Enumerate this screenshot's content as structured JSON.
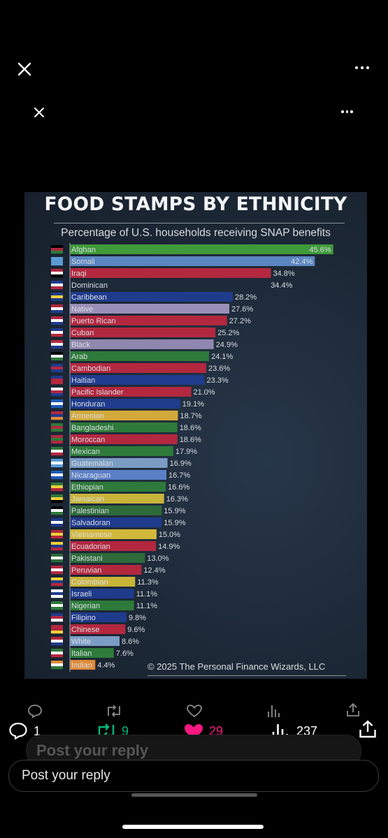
{
  "chart_data": {
    "type": "bar",
    "orientation": "horizontal",
    "title": "FOOD STAMPS BY ETHNICITY",
    "subtitle": "Percentage of U.S. households receiving SNAP benefits",
    "footer": "© 2025 The Personal Finance Wizards, LLC",
    "categories": [
      "Afghan",
      "Somali",
      "Iraqi",
      "Dominican",
      "Caribbean",
      "Native",
      "Puerto Rican",
      "Cuban",
      "Black",
      "Arab",
      "Cambodian",
      "Haitian",
      "Pacific Islander",
      "Honduran",
      "Armenian",
      "Bangladeshi",
      "Moroccan",
      "Mexican",
      "Guatemalan",
      "Nicaraguan",
      "Ethiopian",
      "Jamaican",
      "Palestinian",
      "Salvadoran",
      "Vietnamese",
      "Ecuadorian",
      "Pakistani",
      "Peruvian",
      "Colombian",
      "Israeli",
      "Nigerian",
      "Filipino",
      "Chinese",
      "White",
      "Italian",
      "Indian"
    ],
    "values": [
      45.6,
      42.4,
      34.8,
      34.4,
      28.2,
      27.6,
      27.2,
      25.2,
      24.9,
      24.1,
      23.6,
      23.3,
      21.0,
      19.1,
      18.7,
      18.6,
      18.6,
      17.9,
      16.9,
      16.7,
      16.6,
      16.3,
      15.9,
      15.9,
      15.0,
      14.9,
      13.0,
      12.4,
      11.3,
      11.1,
      11.1,
      9.8,
      9.6,
      8.6,
      7.6,
      4.4
    ],
    "value_labels": [
      "45.6%",
      "42.4%",
      "34.8%",
      "34.4%",
      "28.2%",
      "27.6%",
      "27.2%",
      "25.2%",
      "24.9%",
      "24.1%",
      "23.6%",
      "23.3%",
      "21.0%",
      "19.1%",
      "18.7%",
      "18.6%",
      "18.6%",
      "17.9%",
      "16.9%",
      "16.7%",
      "16.6%",
      "16.3%",
      "15.9%",
      "15.9%",
      "15.0%",
      "14.9%",
      "13.0%",
      "12.4%",
      "11.3%",
      "11.1%",
      "11.1%",
      "9.8%",
      "9.6%",
      "8.6%",
      "7.6%",
      "4.4%"
    ],
    "bar_colors": [
      "#3f9a3a",
      "#5b86c2",
      "#b3283f",
      "#1e2a39",
      "#1f3b8c",
      "#9a8fb8",
      "#b3283f",
      "#b3283f",
      "#8f87ad",
      "#2e7a3a",
      "#b3283f",
      "#1f3b8c",
      "#b3283f",
      "#1f3b8c",
      "#d2a93a",
      "#2e7a3a",
      "#b3283f",
      "#2e7a3a",
      "#7b9cc4",
      "#5b80c8",
      "#2e7a3a",
      "#c9b43a",
      "#2e6a3a",
      "#1f3b8c",
      "#d2b83a",
      "#b3283f",
      "#2e6a3a",
      "#b3283f",
      "#c9b43a",
      "#1f3b8c",
      "#2e7a3a",
      "#1f3b8c",
      "#b3283f",
      "#7b9cc4",
      "#2e7a3a",
      "#e08a3a"
    ],
    "flag_colors": [
      [
        "#000000",
        "#b3283f",
        "#2e7a3a"
      ],
      [
        "#5b9bd5",
        "#5b9bd5",
        "#5b9bd5"
      ],
      [
        "#b3283f",
        "#ffffff",
        "#000000"
      ],
      [
        "#1f3b8c",
        "#ffffff",
        "#b3283f"
      ],
      [
        "#1f3b8c",
        "#f2d03a",
        "#1f3b8c"
      ],
      [
        "#b3283f",
        "#ffffff",
        "#1f3b8c"
      ],
      [
        "#b3283f",
        "#ffffff",
        "#1f3b8c"
      ],
      [
        "#1f3b8c",
        "#ffffff",
        "#b3283f"
      ],
      [
        "#b3283f",
        "#ffffff",
        "#1f3b8c"
      ],
      [
        "#000000",
        "#ffffff",
        "#2e7a3a"
      ],
      [
        "#1f3b8c",
        "#b3283f",
        "#1f3b8c"
      ],
      [
        "#1f3b8c",
        "#b3283f",
        "#b3283f"
      ],
      [
        "#ffffff",
        "#b3283f",
        "#1f3b8c"
      ],
      [
        "#1f5bb5",
        "#ffffff",
        "#1f5bb5"
      ],
      [
        "#b3283f",
        "#1f3b8c",
        "#e08a3a"
      ],
      [
        "#2e7a3a",
        "#b3283f",
        "#2e7a3a"
      ],
      [
        "#b3283f",
        "#2e7a3a",
        "#b3283f"
      ],
      [
        "#2e7a3a",
        "#ffffff",
        "#b3283f"
      ],
      [
        "#5b9bd5",
        "#ffffff",
        "#5b9bd5"
      ],
      [
        "#1f5bb5",
        "#ffffff",
        "#1f5bb5"
      ],
      [
        "#2e7a3a",
        "#f2d03a",
        "#b3283f"
      ],
      [
        "#2e7a3a",
        "#f2d03a",
        "#000000"
      ],
      [
        "#000000",
        "#ffffff",
        "#2e7a3a"
      ],
      [
        "#1f3b8c",
        "#ffffff",
        "#1f3b8c"
      ],
      [
        "#b3283f",
        "#f2d03a",
        "#b3283f"
      ],
      [
        "#f2d03a",
        "#1f3b8c",
        "#b3283f"
      ],
      [
        "#2e6a3a",
        "#ffffff",
        "#2e6a3a"
      ],
      [
        "#b3283f",
        "#ffffff",
        "#b3283f"
      ],
      [
        "#f2d03a",
        "#1f3b8c",
        "#b3283f"
      ],
      [
        "#ffffff",
        "#1f3b8c",
        "#ffffff"
      ],
      [
        "#2e7a3a",
        "#ffffff",
        "#2e7a3a"
      ],
      [
        "#1f3b8c",
        "#b3283f",
        "#ffffff"
      ],
      [
        "#b3283f",
        "#b3283f",
        "#f2d03a"
      ],
      [
        "#b3283f",
        "#ffffff",
        "#1f3b8c"
      ],
      [
        "#2e7a3a",
        "#ffffff",
        "#b3283f"
      ],
      [
        "#e08a3a",
        "#ffffff",
        "#2e7a3a"
      ]
    ],
    "xlim": [
      0,
      46
    ],
    "label_text_color": "#d9dde2"
  },
  "ui": {
    "top_close_icon": "close-icon",
    "top_more_icon": "more-icon",
    "actions": {
      "reply_count": "1",
      "repost_count": "9",
      "like_count": "29",
      "views_count": "237"
    },
    "reply_placeholder_faded": "Post your reply",
    "reply_placeholder": "Post your reply",
    "colors": {
      "repost_green": "#00ba7c",
      "like_pink": "#f91880",
      "background": "#000000"
    }
  }
}
